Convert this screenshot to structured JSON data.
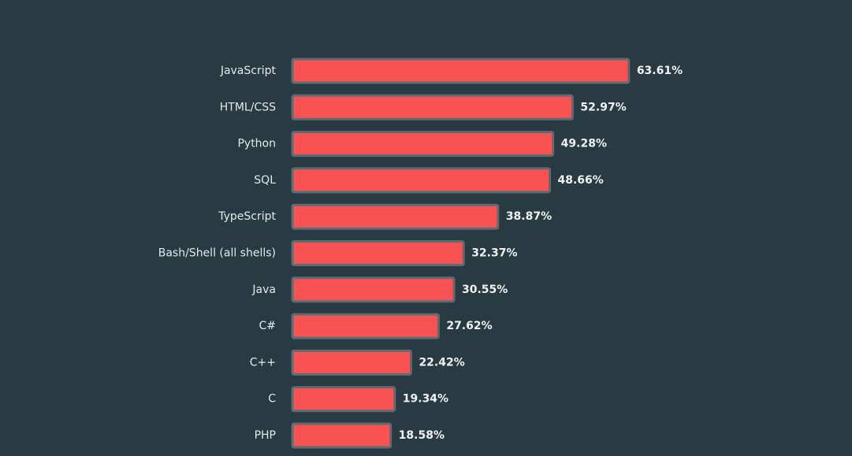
{
  "chart_data": {
    "type": "bar",
    "orientation": "horizontal",
    "color": "#f85252",
    "categories": [
      "JavaScript",
      "HTML/CSS",
      "Python",
      "SQL",
      "TypeScript",
      "Bash/Shell (all shells)",
      "Java",
      "C#",
      "C++",
      "C",
      "PHP"
    ],
    "values": [
      63.61,
      52.97,
      49.28,
      48.66,
      38.87,
      32.37,
      30.55,
      27.62,
      22.42,
      19.34,
      18.58
    ],
    "value_labels": [
      "63.61%",
      "52.97%",
      "49.28%",
      "48.66%",
      "38.87%",
      "32.37%",
      "30.55%",
      "27.62%",
      "22.42%",
      "19.34%",
      "18.58%"
    ]
  }
}
